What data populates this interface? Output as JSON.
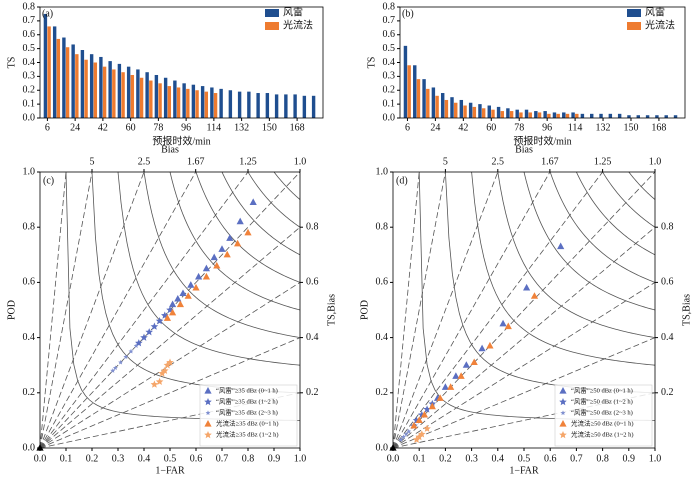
{
  "chart_data": [
    {
      "type": "bar",
      "panel": "(a)",
      "xlabel": "预报时效/min",
      "ylabel": "TS",
      "categories": [
        6,
        null,
        null,
        24,
        null,
        null,
        42,
        null,
        null,
        60,
        null,
        null,
        78,
        null,
        null,
        96,
        null,
        null,
        114,
        null,
        null,
        132,
        null,
        null,
        150,
        null,
        null,
        168,
        null,
        null
      ],
      "ylim": [
        0,
        0.8
      ],
      "yticks": [
        {
          "value": 0,
          "label": "0.0"
        },
        0.1,
        0.2,
        0.3,
        0.4,
        0.5,
        0.6,
        0.7,
        0.8
      ],
      "legend": "upper right",
      "series": [
        {
          "name": "风雷",
          "color": "#1f4e8f",
          "values": [
            0.75,
            0.66,
            0.58,
            0.53,
            0.49,
            0.46,
            0.44,
            0.41,
            0.39,
            0.37,
            0.35,
            0.33,
            0.31,
            0.29,
            0.27,
            0.25,
            0.24,
            0.23,
            0.22,
            0.21,
            0.2,
            0.19,
            0.19,
            0.18,
            0.18,
            0.17,
            0.17,
            0.17,
            0.16,
            0.16
          ]
        },
        {
          "name": "光流法",
          "color": "#ee7b30",
          "values": [
            0.66,
            0.57,
            0.51,
            0.46,
            0.42,
            0.4,
            0.37,
            0.35,
            0.33,
            0.31,
            0.29,
            0.27,
            0.25,
            0.23,
            0.22,
            0.21,
            0.2,
            0.19,
            0.18,
            null,
            null,
            null,
            null,
            null,
            null,
            null,
            null,
            null,
            null,
            null
          ]
        }
      ]
    },
    {
      "type": "bar",
      "panel": "(b)",
      "xlabel": "预报时效/min",
      "ylabel": "TS",
      "categories": [
        6,
        null,
        null,
        24,
        null,
        null,
        42,
        null,
        null,
        60,
        null,
        null,
        78,
        null,
        null,
        96,
        null,
        null,
        114,
        null,
        null,
        132,
        null,
        null,
        150,
        null,
        null,
        168,
        null,
        null
      ],
      "ylim": [
        0,
        0.8
      ],
      "yticks": [
        {
          "value": 0,
          "label": "0.0"
        },
        0.1,
        0.2,
        0.3,
        0.4,
        0.5,
        0.6,
        0.7,
        0.8
      ],
      "legend": "upper right",
      "series": [
        {
          "name": "风雷",
          "color": "#1f4e8f",
          "values": [
            0.52,
            0.38,
            0.28,
            0.22,
            0.18,
            0.15,
            0.13,
            0.11,
            0.1,
            0.09,
            0.08,
            0.07,
            0.06,
            0.06,
            0.05,
            0.05,
            0.04,
            0.04,
            0.04,
            0.03,
            0.03,
            0.03,
            0.03,
            0.03,
            0.02,
            0.02,
            0.02,
            0.02,
            0.02,
            0.02
          ]
        },
        {
          "name": "光流法",
          "color": "#ee7b30",
          "values": [
            0.38,
            0.28,
            0.21,
            0.16,
            0.13,
            0.11,
            0.09,
            0.08,
            0.07,
            0.06,
            0.05,
            0.05,
            0.04,
            0.04,
            0.04,
            0.03,
            0.03,
            0.03,
            0.03,
            null,
            null,
            null,
            null,
            null,
            null,
            null,
            null,
            null,
            null,
            null
          ]
        }
      ]
    },
    {
      "type": "performance",
      "panel": "(c)",
      "xlabel": "1−FAR",
      "ylabel": "POD",
      "x2label": "Bias",
      "y2label": "TS,Bias",
      "xlim": [
        0,
        1
      ],
      "ylim": [
        0,
        1
      ],
      "y2lim": [
        0,
        1
      ],
      "xticks": [
        {
          "value": 0,
          "label": "0.0"
        },
        0.1,
        0.2,
        0.3,
        0.4,
        0.5,
        0.6,
        0.7,
        0.8,
        0.9,
        {
          "value": 1,
          "label": "1.0"
        }
      ],
      "yticks": [
        {
          "value": 0,
          "label": "0.0"
        },
        0.2,
        0.4,
        0.6,
        0.8,
        {
          "value": 1,
          "label": "1.0"
        }
      ],
      "x2ticks": [
        5,
        2.5,
        1.67,
        1.25,
        {
          "value": 1,
          "label": "1.0"
        }
      ],
      "y2ticks": [
        0.2,
        0.4,
        0.6,
        0.8
      ],
      "ts_lines": [
        0.1,
        0.2,
        0.3,
        0.4,
        0.5,
        0.6,
        0.7,
        0.8,
        0.9
      ],
      "bias_lines": [
        0.2,
        0.4,
        0.6,
        0.8,
        1,
        1.25,
        1.67,
        2.5,
        5,
        10
      ],
      "legend": "lower right",
      "series": [
        {
          "name": "“风雷”≥35 dBz (0~1 h)",
          "color": "#5b6fc2",
          "marker": "triangle",
          "x": [
            0.82,
            0.77,
            0.73,
            0.7,
            0.67,
            0.64,
            0.61,
            0.58,
            0.55,
            0.53,
            0.51
          ],
          "y": [
            0.89,
            0.82,
            0.76,
            0.72,
            0.69,
            0.65,
            0.62,
            0.59,
            0.56,
            0.54,
            0.52
          ]
        },
        {
          "name": "“风雷”≥35 dBz (1~2 h)",
          "color": "#5b6fc2",
          "marker": "star",
          "x": [
            0.5,
            0.48,
            0.46,
            0.44,
            0.42,
            0.4,
            0.38
          ],
          "y": [
            0.5,
            0.48,
            0.46,
            0.44,
            0.42,
            0.4,
            0.38
          ]
        },
        {
          "name": "“风雷”≥35 dBz (2~3 h)",
          "color": "#8090d0",
          "marker": "small-star",
          "x": [
            0.37,
            0.35,
            0.33,
            0.31,
            0.29,
            0.28
          ],
          "y": [
            0.37,
            0.35,
            0.33,
            0.31,
            0.29,
            0.28
          ]
        },
        {
          "name": "光流法≥35 dBz (0~1 h)",
          "color": "#f0823a",
          "marker": "triangle",
          "x": [
            0.8,
            0.76,
            0.72,
            0.68,
            0.64,
            0.6,
            0.57,
            0.54,
            0.51,
            0.49
          ],
          "y": [
            0.78,
            0.74,
            0.7,
            0.66,
            0.62,
            0.58,
            0.55,
            0.52,
            0.49,
            0.47
          ]
        },
        {
          "name": "光流法≥35 dBz (1~2 h)",
          "color": "#f5a66a",
          "marker": "star",
          "x": [
            0.5,
            0.49,
            0.48,
            0.47,
            0.46,
            0.44
          ],
          "y": [
            0.31,
            0.3,
            0.28,
            0.27,
            0.24,
            0.23
          ]
        }
      ]
    },
    {
      "type": "performance",
      "panel": "(d)",
      "xlabel": "1−FAR",
      "ylabel": "POD",
      "x2label": "Bias",
      "y2label": "TS,Bias",
      "xlim": [
        0,
        1
      ],
      "ylim": [
        0,
        1
      ],
      "y2lim": [
        0,
        1
      ],
      "xticks": [
        {
          "value": 0,
          "label": "0.0"
        },
        0.1,
        0.2,
        0.3,
        0.4,
        0.5,
        0.6,
        0.7,
        0.8,
        0.9,
        {
          "value": 1,
          "label": "1.0"
        }
      ],
      "yticks": [
        {
          "value": 0,
          "label": "0.0"
        },
        0.2,
        0.4,
        0.6,
        0.8,
        {
          "value": 1,
          "label": "1.0"
        }
      ],
      "x2ticks": [
        5,
        2.5,
        1.67,
        1.25,
        {
          "value": 1,
          "label": "1.0"
        }
      ],
      "y2ticks": [
        0.2,
        0.4,
        0.6,
        0.8
      ],
      "ts_lines": [
        0.1,
        0.2,
        0.3,
        0.4,
        0.5,
        0.6,
        0.7,
        0.8,
        0.9
      ],
      "bias_lines": [
        0.2,
        0.4,
        0.6,
        0.8,
        1,
        1.25,
        1.67,
        2.5,
        5,
        10
      ],
      "legend": "lower right",
      "series": [
        {
          "name": "“风雷”≥50 dBz (0~1 h)",
          "color": "#5b6fc2",
          "marker": "triangle",
          "x": [
            0.64,
            0.51,
            0.42,
            0.34,
            0.28,
            0.24,
            0.2,
            0.17
          ],
          "y": [
            0.73,
            0.58,
            0.45,
            0.36,
            0.3,
            0.26,
            0.22,
            0.18
          ]
        },
        {
          "name": "“风雷”≥50 dBz (1~2 h)",
          "color": "#5b6fc2",
          "marker": "star",
          "x": [
            0.15,
            0.13,
            0.11,
            0.09,
            0.08
          ],
          "y": [
            0.16,
            0.14,
            0.12,
            0.1,
            0.08
          ]
        },
        {
          "name": "“风雷”≥50 dBz (2~3 h)",
          "color": "#8090d0",
          "marker": "small-star",
          "x": [
            0.06,
            0.05,
            0.04,
            0.03
          ],
          "y": [
            0.06,
            0.05,
            0.04,
            0.03
          ]
        },
        {
          "name": "光流法≥50 dBz (0~1 h)",
          "color": "#f0823a",
          "marker": "triangle",
          "x": [
            0.54,
            0.44,
            0.37,
            0.31,
            0.26,
            0.22,
            0.18,
            0.15,
            0.12,
            0.1,
            0.08
          ],
          "y": [
            0.55,
            0.44,
            0.37,
            0.31,
            0.26,
            0.22,
            0.18,
            0.15,
            0.12,
            0.1,
            0.08
          ]
        },
        {
          "name": "光流法≥50 dBz (1~2 h)",
          "color": "#f5a66a",
          "marker": "star",
          "x": [
            0.13,
            0.11,
            0.1,
            0.09
          ],
          "y": [
            0.07,
            0.05,
            0.04,
            0.03
          ]
        }
      ]
    }
  ]
}
